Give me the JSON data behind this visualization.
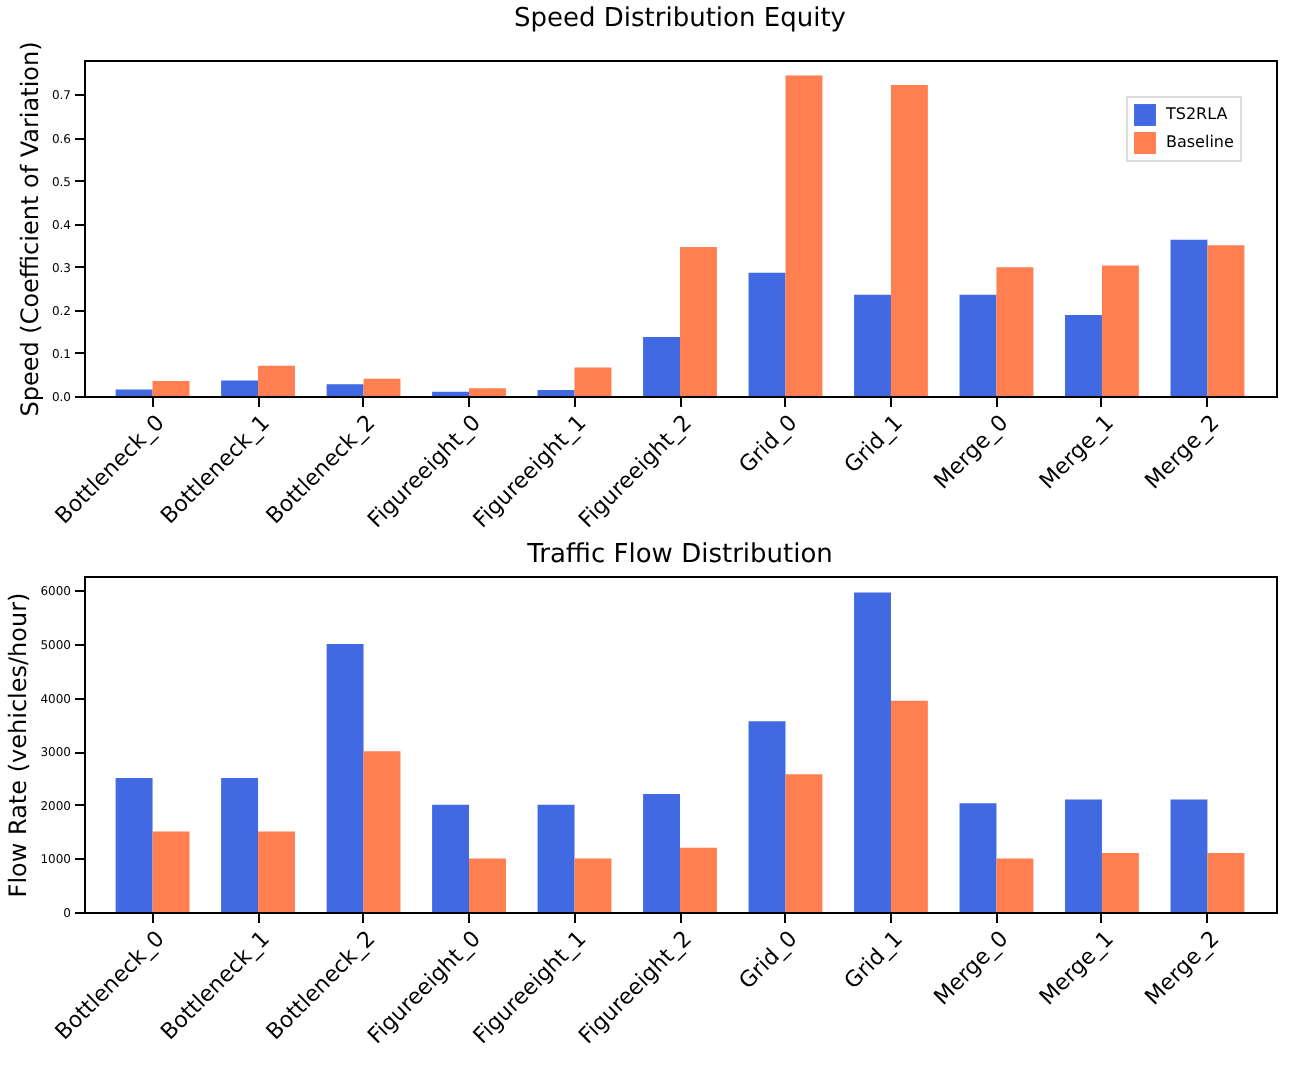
{
  "chart_data": [
    {
      "type": "bar",
      "title": "Speed Distribution Equity",
      "ylabel": "Speed (Coefficient of Variation)",
      "categories": [
        "Bottleneck_0",
        "Bottleneck_1",
        "Bottleneck_2",
        "Figureeight_0",
        "Figureeight_1",
        "Figureeight_2",
        "Grid_0",
        "Grid_1",
        "Merge_0",
        "Merge_1",
        "Merge_2"
      ],
      "series": [
        {
          "name": "TS2RLA",
          "color": "#4169e1",
          "values": [
            0.015,
            0.036,
            0.027,
            0.01,
            0.014,
            0.137,
            0.286,
            0.235,
            0.235,
            0.188,
            0.363
          ]
        },
        {
          "name": "Baseline",
          "color": "#ff7f50",
          "values": [
            0.035,
            0.07,
            0.04,
            0.018,
            0.066,
            0.346,
            0.744,
            0.722,
            0.299,
            0.303,
            0.35
          ]
        }
      ],
      "ylim": [
        0,
        0.78
      ],
      "yticks": [
        {
          "value": 0,
          "label": "0.0"
        },
        0.1,
        0.2,
        0.3,
        0.4,
        0.5,
        0.6,
        0.7
      ],
      "grid": false,
      "legend": "top right"
    },
    {
      "type": "bar",
      "title": "Traffic Flow Distribution",
      "ylabel": "Flow Rate (vehicles/hour)",
      "categories": [
        "Bottleneck_0",
        "Bottleneck_1",
        "Bottleneck_2",
        "Figureeight_0",
        "Figureeight_1",
        "Figureeight_2",
        "Grid_0",
        "Grid_1",
        "Merge_0",
        "Merge_1",
        "Merge_2"
      ],
      "series": [
        {
          "name": "TS2RLA",
          "color": "#4169e1",
          "values": [
            2500,
            2500,
            5000,
            2000,
            2000,
            2200,
            3560,
            5960,
            2030,
            2100,
            2100
          ]
        },
        {
          "name": "Baseline",
          "color": "#ff7f50",
          "values": [
            1500,
            1500,
            3000,
            1000,
            1000,
            1200,
            2570,
            3940,
            1000,
            1100,
            1100
          ]
        }
      ],
      "ylim": [
        0,
        6270
      ],
      "yticks": [
        0,
        1000,
        2000,
        3000,
        4000,
        5000,
        6000
      ],
      "grid": false,
      "legend": "top right"
    }
  ]
}
